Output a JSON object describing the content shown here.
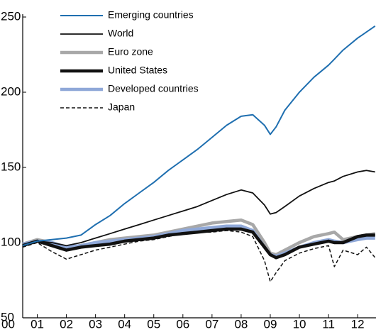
{
  "chart_data": {
    "type": "line",
    "x": [
      0.5,
      1,
      1.5,
      2,
      2.5,
      3,
      3.5,
      4,
      4.5,
      5,
      5.5,
      6,
      6.5,
      7,
      7.5,
      8,
      8.4,
      8.8,
      9,
      9.2,
      9.5,
      10,
      10.5,
      11,
      11.2,
      11.5,
      12,
      12.3,
      12.6
    ],
    "series": [
      {
        "name": "Emerging countries",
        "color": "#1f6fb0",
        "line_width": 2,
        "dash": "none",
        "values": [
          98,
          101,
          102,
          103,
          105,
          112,
          118,
          126,
          133,
          140,
          148,
          155,
          162,
          170,
          178,
          184,
          185,
          178,
          172,
          177,
          188,
          200,
          210,
          218,
          222,
          228,
          236,
          240,
          244
        ]
      },
      {
        "name": "World",
        "color": "#111111",
        "line_width": 1.8,
        "dash": "none",
        "values": [
          98,
          101,
          100,
          98,
          100,
          103,
          106,
          109,
          112,
          115,
          118,
          121,
          124,
          128,
          132,
          135,
          133,
          125,
          119,
          120,
          124,
          131,
          136,
          140,
          141,
          144,
          147,
          148,
          147
        ]
      },
      {
        "name": "Euro zone",
        "color": "#a8a8a8",
        "line_width": 4.5,
        "dash": "none",
        "values": [
          99,
          102,
          100,
          97,
          98,
          100,
          102,
          103,
          104,
          105,
          107,
          109,
          111,
          113,
          114,
          115,
          112,
          100,
          93,
          92,
          95,
          100,
          104,
          106,
          107,
          102,
          104,
          105,
          106
        ]
      },
      {
        "name": "United States",
        "color": "#111111",
        "line_width": 4.5,
        "dash": "none",
        "values": [
          98,
          101,
          98,
          95,
          97,
          98,
          99,
          101,
          102,
          103,
          105,
          106,
          107,
          108,
          109,
          109,
          107,
          97,
          92,
          90,
          92,
          97,
          99,
          101,
          100,
          100,
          104,
          105,
          105
        ]
      },
      {
        "name": "Developed countries",
        "color": "#8fa8d8",
        "line_width": 4.5,
        "dash": "none",
        "values": [
          99,
          101,
          100,
          97,
          98,
          100,
          101,
          102,
          103,
          104,
          106,
          108,
          109,
          110,
          111,
          111,
          108,
          97,
          92,
          91,
          93,
          97,
          100,
          102,
          101,
          100,
          102,
          103,
          103
        ]
      },
      {
        "name": "Japan",
        "color": "#111111",
        "line_width": 1.5,
        "dash": "5 3",
        "values": [
          97,
          100,
          94,
          89,
          92,
          95,
          97,
          99,
          101,
          102,
          104,
          106,
          107,
          107,
          108,
          107,
          104,
          88,
          74,
          80,
          88,
          93,
          96,
          98,
          84,
          95,
          92,
          97,
          90
        ]
      }
    ],
    "xlim": [
      0.5,
      12.63
    ],
    "xticks": [
      {
        "value": 0,
        "label": "00"
      },
      {
        "value": 1,
        "label": "01"
      },
      {
        "value": 2,
        "label": "02"
      },
      {
        "value": 3,
        "label": "03"
      },
      {
        "value": 4,
        "label": "04"
      },
      {
        "value": 5,
        "label": "05"
      },
      {
        "value": 6,
        "label": "06"
      },
      {
        "value": 7,
        "label": "07"
      },
      {
        "value": 8,
        "label": "08"
      },
      {
        "value": 9,
        "label": "09"
      },
      {
        "value": 10,
        "label": "10"
      },
      {
        "value": 11,
        "label": "11"
      },
      {
        "value": 12,
        "label": "12"
      }
    ],
    "ylim": [
      50,
      250
    ],
    "yticks": [
      50,
      100,
      150,
      200,
      250
    ],
    "legend": "top-left"
  }
}
